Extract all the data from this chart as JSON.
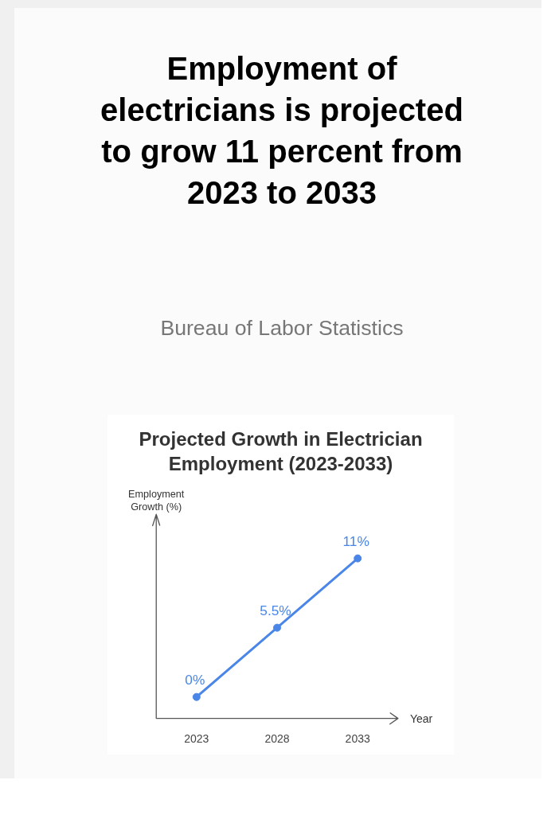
{
  "chart_data": {
    "type": "line",
    "title": "Projected Growth in Electrician Employment (2023-2033)",
    "annotations": [
      "Employment of electricians is projected to grow 11 percent from 2023 to 2033",
      "Bureau of Labor Statistics"
    ],
    "xlabel": "Year",
    "ylabel": "Employment Growth (%)",
    "categories": [
      "2023",
      "2028",
      "2033"
    ],
    "series": [
      {
        "color": "#4a86e8",
        "values": [
          0,
          5.5,
          11
        ],
        "value_labels": [
          "0%",
          "5.5%",
          "11%"
        ]
      }
    ],
    "marker": "circle",
    "grid": false
  }
}
